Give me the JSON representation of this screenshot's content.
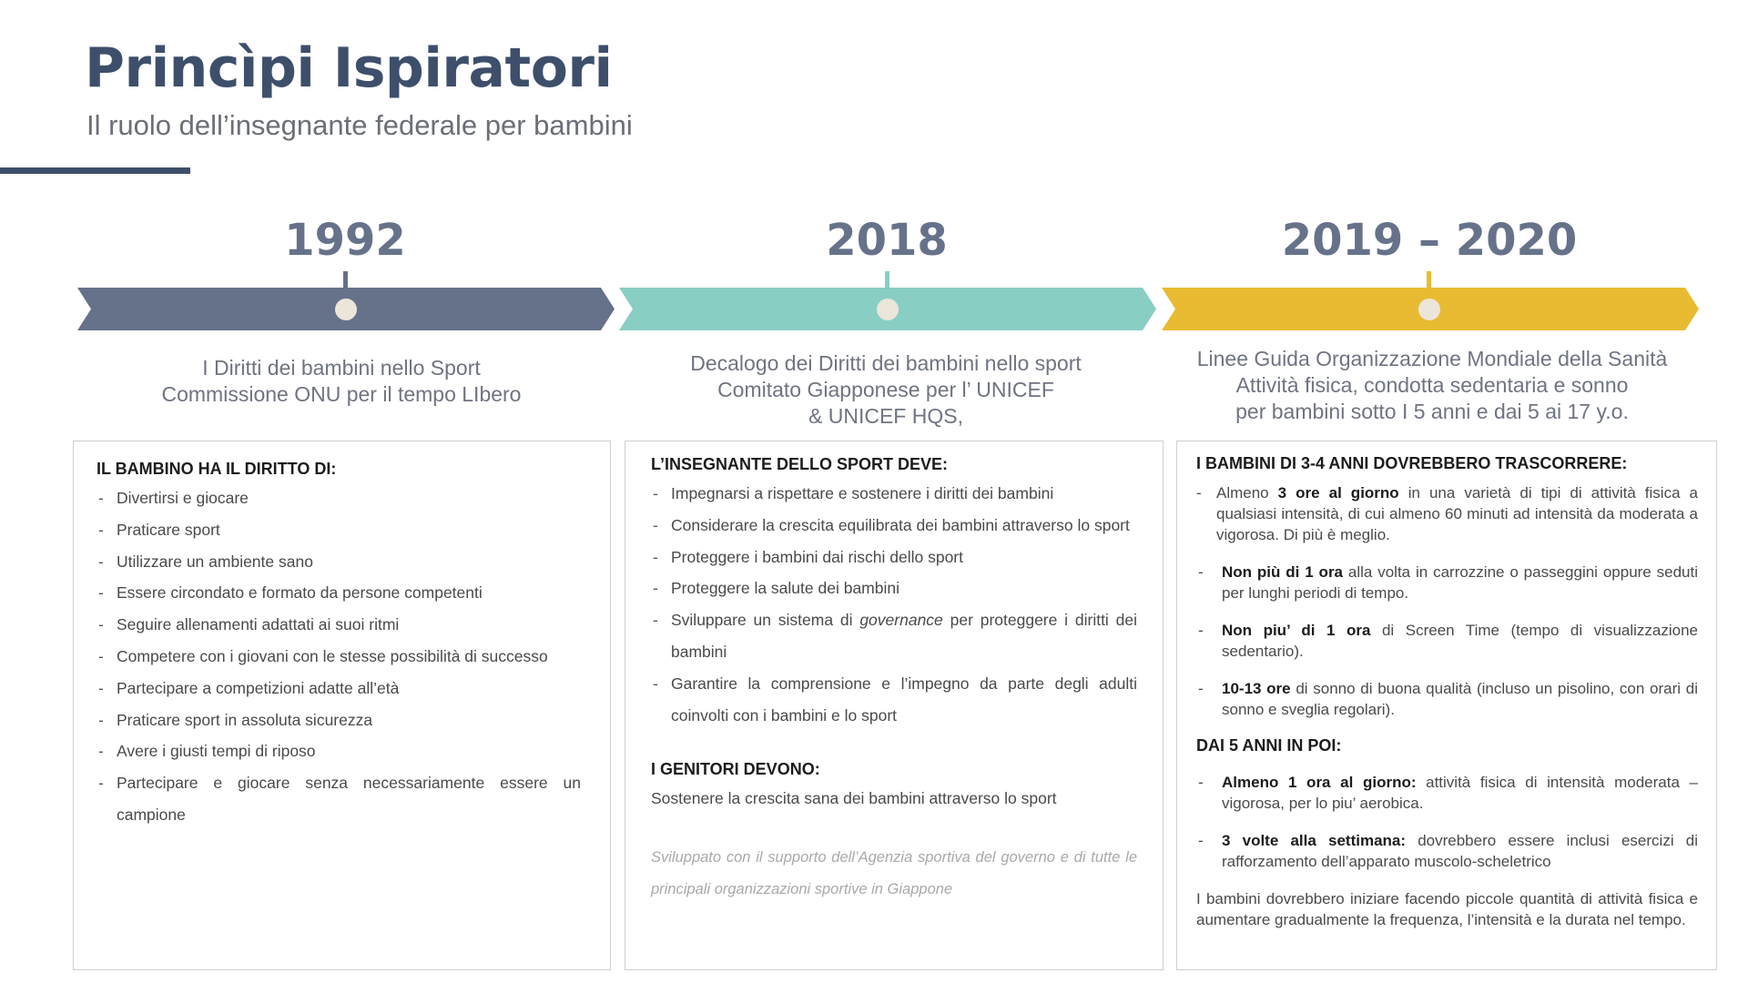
{
  "header": {
    "title": "Princìpi Ispiratori",
    "subtitle": "Il ruolo dell’insegnante federale per bambini"
  },
  "timeline": [
    {
      "year": "1992",
      "color": "#66728a",
      "caption": [
        "I Diritti dei bambini nello Sport",
        "Commissione ONU per il tempo LIbero"
      ]
    },
    {
      "year": "2018",
      "color": "#88cec3",
      "caption": [
        "Decalogo dei Diritti dei bambini nello sport",
        "Comitato Giapponese per l’ UNICEF",
        "& UNICEF HQS,"
      ]
    },
    {
      "year": "2019 – 2020",
      "color": "#e8bb33",
      "caption": [
        "Linee Guida Organizzazione Mondiale della Sanità",
        "Attività fisica, condotta sedentaria e sonno",
        "per bambini sotto I 5 anni e dai 5 ai 17 y.o."
      ]
    }
  ],
  "box1": {
    "heading": "IL BAMBINO HA IL DIRITTO DI:",
    "items": [
      "Divertirsi e giocare",
      "Praticare sport",
      "Utilizzare un ambiente sano",
      "Essere circondato e formato da persone competenti",
      "Seguire allenamenti adattati ai suoi ritmi",
      "Competere con i giovani con le stesse possibilità di successo",
      "Partecipare a competizioni adatte all’età",
      "Praticare sport in assoluta sicurezza",
      "Avere i giusti tempi di riposo",
      "Partecipare e giocare senza necessariamente essere un campione"
    ]
  },
  "box2": {
    "heading": "L’INSEGNANTE DELLO SPORT DEVE:",
    "items": [
      "Impegnarsi a rispettare e sostenere i diritti dei bambini",
      "Considerare la crescita equilibrata dei bambini attraverso lo sport",
      "Proteggere i bambini dai rischi dello sport",
      "Proteggere la salute dei bambini"
    ],
    "governance_pre": "Sviluppare un sistema di ",
    "governance_word": "governance",
    "governance_post": " per proteggere i diritti dei bambini",
    "last_item": "Garantire la comprensione e l’impegno da parte degli adulti coinvolti con i bambini e lo sport",
    "parents_heading": "I GENITORI DEVONO:",
    "parents_text": "Sostenere la crescita sana dei bambini attraverso lo sport",
    "footnote": "Sviluppato con il supporto dell’Agenzia sportiva del governo e di tutte le principali organizzazioni sportive in Giappone"
  },
  "box3": {
    "heading": "I BAMBINI DI 3-4 ANNI DOVREBBERO TRASCORRERE:",
    "first_pre": "Almeno ",
    "first_bold": "3 ore al giorno",
    "first_post": " in una varietà di tipi di attività fisica a qualsiasi intensità, di cui almeno 60 minuti ad intensità da moderata a vigorosa. Di più è meglio.",
    "items": [
      {
        "bold": "Non più di 1 ora",
        "text": " alla volta in carrozzine o passeggini oppure seduti per lunghi periodi di tempo."
      },
      {
        "bold": "Non piu’ di 1 ora",
        "text": " di Screen Time (tempo di visualizzazione sedentario)."
      },
      {
        "bold": "10-13 ore",
        "text": " di sonno di buona qualità (incluso un pisolino, con orari di sonno e sveglia regolari)."
      }
    ],
    "sub_heading": "DAI 5 ANNI IN POI:",
    "items2": [
      {
        "bold": "Almeno 1 ora al giorno:",
        "text": " attività fisica di intensità moderata – vigorosa, per lo piu’ aerobica."
      },
      {
        "bold": "3 volte alla settimana:",
        "text": " dovrebbero essere inclusi esercizi di rafforzamento dell’apparato muscolo-scheletrico"
      }
    ],
    "closing": "I bambini dovrebbero iniziare facendo piccole quantità di attività fisica e aumentare gradualmente la frequenza, l’intensità e la durata nel tempo."
  }
}
